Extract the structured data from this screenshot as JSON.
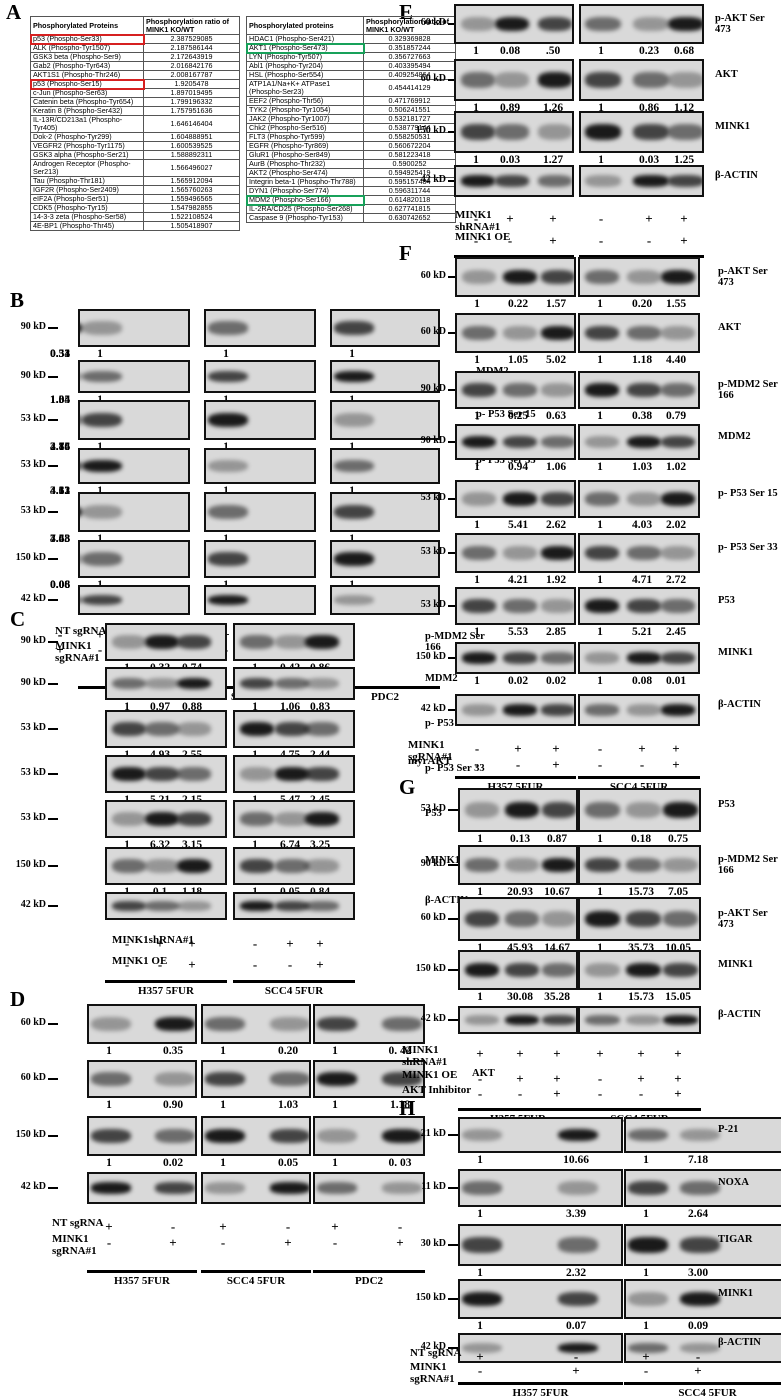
{
  "panels": [
    "A",
    "B",
    "C",
    "D",
    "E",
    "F",
    "G",
    "H"
  ],
  "table": {
    "left": {
      "headers": [
        "Phosphorylated Proteins",
        "Phosphorylation ratio of MINK1 KO/WT"
      ],
      "rows": [
        [
          "p53 (Phospho-Ser33)",
          "2.387529085",
          "red"
        ],
        [
          "ALK (Phospho-Tyr1507)",
          "2.187586144",
          ""
        ],
        [
          "GSK3 beta (Phospho-Ser9)",
          "2.172643919",
          ""
        ],
        [
          "Gab2 (Phospho-Tyr643)",
          "2.016842176",
          ""
        ],
        [
          "AKT1S1 (Phospho-Thr246)",
          "2.008167787",
          ""
        ],
        [
          "p53 (Phospho-Ser15)",
          "1.9205478",
          "red"
        ],
        [
          "c-Jun (Phospho-Ser63)",
          "1.897019495",
          ""
        ],
        [
          "Catenin beta (Phospho-Tyr654)",
          "1.799196332",
          ""
        ],
        [
          "Keratin 8 (Phospho-Ser432)",
          "1.757951636",
          ""
        ],
        [
          "IL-13R/CD213a1 (Phospho-Tyr405)",
          "1.646146404",
          ""
        ],
        [
          "Dok-2 (Phospho-Tyr299)",
          "1.604888951",
          ""
        ],
        [
          "VEGFR2 (Phospho-Tyr1175)",
          "1.600539525",
          ""
        ],
        [
          "GSK3 alpha (Phospho-Ser21)",
          "1.588892311",
          ""
        ],
        [
          "Androgen Receptor (Phospho-Ser213)",
          "1.566496027",
          ""
        ],
        [
          "Tau (Phospho-Thr181)",
          "1.565912094",
          ""
        ],
        [
          "IGF2R (Phospho-Ser2409)",
          "1.565760263",
          ""
        ],
        [
          "eIF2A (Phospho-Ser51)",
          "1.559496565",
          ""
        ],
        [
          "CDK5 (Phospho-Tyr15)",
          "1.547982855",
          ""
        ],
        [
          "14-3-3 zeta (Phospho-Ser58)",
          "1.522108524",
          ""
        ],
        [
          "4E-BP1 (Phospho-Thr45)",
          "1.505418907",
          ""
        ]
      ]
    },
    "right": {
      "headers": [
        "Phosphorylated proteins",
        "Phosphorylation ratio of MINK1 KO/WT"
      ],
      "rows": [
        [
          "HDAC1 (Phospho-Ser421)",
          "0.329369828",
          ""
        ],
        [
          "AKT1 (Phospho-Ser473)",
          "0.351857244",
          "green"
        ],
        [
          "LYN (Phospho-Tyr507)",
          "0.356727663",
          ""
        ],
        [
          "Abl1 (Phospho-Tyr204)",
          "0.403395494",
          ""
        ],
        [
          "HSL (Phospho-Ser554)",
          "0.409254864",
          ""
        ],
        [
          "ATP1A1/Na+K+ ATPase1 (Phospho-Ser23)",
          "0.454414129",
          ""
        ],
        [
          "EEF2 (Phospho-Thr56)",
          "0.471769912",
          ""
        ],
        [
          "TYK2 (Phospho-Tyr1054)",
          "0.506241551",
          ""
        ],
        [
          "JAK2 (Phospho-Tyr1007)",
          "0.532181727",
          ""
        ],
        [
          "Chk2 (Phospho-Ser516)",
          "0.538779144",
          ""
        ],
        [
          "FLT3 (Phospho-Tyr599)",
          "0.558250531",
          ""
        ],
        [
          "EGFR (Phospho-Tyr869)",
          "0.560672204",
          ""
        ],
        [
          "GluR1 (Phospho-Ser849)",
          "0.581223418",
          ""
        ],
        [
          "AurB (Phospho-Thr232)",
          "0.5900252",
          ""
        ],
        [
          "AKT2 (Phospho-Ser474)",
          "0.594925419",
          ""
        ],
        [
          "Integrin beta-1 (Phospho-Thr788)",
          "0.595157484",
          ""
        ],
        [
          "DYN1 (Phospho-Ser774)",
          "0.596311744",
          ""
        ],
        [
          "MDM2 (Phospho-Ser166)",
          "0.614820118",
          "green"
        ],
        [
          "IL-2RA/CD25 (Phospho-Ser268)",
          "0.627741815",
          ""
        ],
        [
          "Caspase 9 (Phospho-Tyr153)",
          "0.630742652",
          ""
        ]
      ]
    }
  },
  "blots": {
    "B": {
      "rows": [
        {
          "kd": "90 kD",
          "label": "p-MDM2 Ser 166",
          "q": [
            [
              "1",
              "0.31"
            ],
            [
              "1",
              "0.53"
            ],
            [
              "1",
              "0.34"
            ]
          ]
        },
        {
          "kd": "90 kD",
          "label": "MDM2",
          "q": [
            [
              "1",
              "1.05"
            ],
            [
              "1",
              "1.04"
            ],
            [
              "1",
              "1.34"
            ]
          ]
        },
        {
          "kd": "53 kD",
          "label": "p- P53 Ser 15",
          "q": [
            [
              "1",
              "2.84"
            ],
            [
              "1",
              "4.15"
            ],
            [
              "1",
              "3.76"
            ]
          ]
        },
        {
          "kd": "53 kD",
          "label": "p- P53 Ser 33",
          "q": [
            [
              "1",
              "3.12"
            ],
            [
              "1",
              "4.33"
            ],
            [
              "1",
              "4.61"
            ]
          ]
        },
        {
          "kd": "53 kD",
          "label": "P53",
          "q": [
            [
              "1",
              "3.48"
            ],
            [
              "1",
              "7.53"
            ],
            [
              "1",
              "4.63"
            ]
          ]
        },
        {
          "kd": "150 kD",
          "label": "MINK1",
          "q": [
            [
              "1",
              "0.08"
            ],
            [
              "1",
              "0.06"
            ],
            [
              "1",
              "0.08"
            ]
          ]
        },
        {
          "kd": "42 kD",
          "label": "β-ACTIN",
          "q": []
        }
      ],
      "treatments": [
        [
          "NT sgRNA",
          [
            "+",
            "-"
          ]
        ],
        [
          "MINK1 sgRNA#1",
          [
            "-",
            "+"
          ]
        ]
      ],
      "cells": [
        "H357 5FUR",
        "SCC4 5FUR",
        "PDC2"
      ]
    },
    "C": {
      "rows": [
        {
          "kd": "90 kD",
          "label": "p-MDM2 Ser 166",
          "q": [
            [
              "1",
              "0.32",
              "0.74"
            ],
            [
              "1",
              "0.42",
              "0.86"
            ]
          ]
        },
        {
          "kd": "90 kD",
          "label": "MDM2",
          "q": [
            [
              "1",
              "0.97",
              "0.88"
            ],
            [
              "1",
              "1.06",
              "0.83"
            ]
          ]
        },
        {
          "kd": "53 kD",
          "label": "p- P53 Ser 15",
          "q": [
            [
              "1",
              "4.93",
              "2.55"
            ],
            [
              "1",
              "4.75",
              "2.44"
            ]
          ]
        },
        {
          "kd": "53 kD",
          "label": "p- P53 Ser 33",
          "q": [
            [
              "1",
              "5.21",
              "2.15"
            ],
            [
              "1",
              "5.47",
              "2.45"
            ]
          ]
        },
        {
          "kd": "53 kD",
          "label": "P53",
          "q": [
            [
              "1",
              "6.32",
              "3.15"
            ],
            [
              "1",
              "6.74",
              "3.25"
            ]
          ]
        },
        {
          "kd": "150 kD",
          "label": "MINK1",
          "q": [
            [
              "1",
              "0.1",
              "1.18"
            ],
            [
              "1",
              "0.05",
              "0.84"
            ]
          ]
        },
        {
          "kd": "42 kD",
          "label": "β-ACTIN",
          "q": []
        }
      ],
      "treatments": [
        [
          "MINK1shRNA#1",
          [
            "-",
            "+",
            "+"
          ]
        ],
        [
          "MINK1 OE",
          [
            "-",
            "-",
            "+"
          ]
        ]
      ],
      "cells": [
        "H357 5FUR",
        "SCC4 5FUR"
      ]
    },
    "D": {
      "rows": [
        {
          "kd": "60 kD",
          "label": "p-AKT Ser 473",
          "q": [
            [
              "1",
              "0.35"
            ],
            [
              "1",
              "0.20"
            ],
            [
              "1",
              "0. 42"
            ]
          ]
        },
        {
          "kd": "60 kD",
          "label": "AKT",
          "q": [
            [
              "1",
              "0.90"
            ],
            [
              "1",
              "1.03"
            ],
            [
              "1",
              "1.18"
            ]
          ]
        },
        {
          "kd": "150 kD",
          "label": "MINK1",
          "q": [
            [
              "1",
              "0.02"
            ],
            [
              "1",
              "0.05"
            ],
            [
              "1",
              "0. 03"
            ]
          ]
        },
        {
          "kd": "42 kD",
          "label": "β-ACTIN",
          "q": []
        }
      ],
      "treatments": [
        [
          "NT sgRNA",
          [
            "+",
            "-"
          ]
        ],
        [
          "MINK1 sgRNA#1",
          [
            "-",
            "+"
          ]
        ]
      ],
      "cells": [
        "H357 5FUR",
        "SCC4 5FUR",
        "PDC2"
      ]
    },
    "E": {
      "rows": [
        {
          "kd": "60 kD",
          "label": "p-AKT Ser 473",
          "q": [
            [
              "1",
              "0.08",
              ".50"
            ],
            [
              "1",
              "0.23",
              "0.68"
            ]
          ]
        },
        {
          "kd": "60 kD",
          "label": "AKT",
          "q": [
            [
              "1",
              "0.89",
              "1.26"
            ],
            [
              "1",
              "0.86",
              "1.12"
            ]
          ]
        },
        {
          "kd": "150 kD",
          "label": "MINK1",
          "q": [
            [
              "1",
              "0.03",
              "1.27"
            ],
            [
              "1",
              "0.03",
              "1.25"
            ]
          ]
        },
        {
          "kd": "42 kD",
          "label": "β-ACTIN",
          "q": []
        }
      ],
      "treatments": [
        [
          "MINK1 shRNA#1",
          [
            "-",
            "+",
            "+"
          ]
        ],
        [
          "MINK1 OE",
          [
            "-",
            "-",
            "+"
          ]
        ]
      ],
      "cells": [
        "H357 5FUR",
        "SCC4 5FUR"
      ]
    },
    "F": {
      "rows": [
        {
          "kd": "60 kD",
          "label": "p-AKT Ser 473",
          "q": [
            [
              "1",
              "0.22",
              "1.57"
            ],
            [
              "1",
              "0.20",
              "1.55"
            ]
          ]
        },
        {
          "kd": "60 kD",
          "label": "AKT",
          "q": [
            [
              "1",
              "1.05",
              "5.02"
            ],
            [
              "1",
              "1.18",
              "4.40"
            ]
          ]
        },
        {
          "kd": "90 kD",
          "label": "p-MDM2 Ser 166",
          "q": [
            [
              "1",
              "0.25",
              "0.63"
            ],
            [
              "1",
              "0.38",
              "0.79"
            ]
          ]
        },
        {
          "kd": "90 kD",
          "label": "MDM2",
          "q": [
            [
              "1",
              "0.94",
              "1.06"
            ],
            [
              "1",
              "1.03",
              "1.02"
            ]
          ]
        },
        {
          "kd": "53 kD",
          "label": "p- P53 Ser 15",
          "q": [
            [
              "1",
              "5.41",
              "2.62"
            ],
            [
              "1",
              "4.03",
              "2.02"
            ]
          ]
        },
        {
          "kd": "53 kD",
          "label": "p- P53 Ser 33",
          "q": [
            [
              "1",
              "4.21",
              "1.92"
            ],
            [
              "1",
              "4.71",
              "2.72"
            ]
          ]
        },
        {
          "kd": "53 kD",
          "label": "P53",
          "q": [
            [
              "1",
              "5.53",
              "2.85"
            ],
            [
              "1",
              "5.21",
              "2.45"
            ]
          ]
        },
        {
          "kd": "150 kD",
          "label": "MINK1",
          "q": [
            [
              "1",
              "0.02",
              "0.02"
            ],
            [
              "1",
              "0.08",
              "0.01"
            ]
          ]
        },
        {
          "kd": "42 kD",
          "label": "β-ACTIN",
          "q": []
        }
      ],
      "treatments": [
        [
          "MINK1 sgRNA#1",
          [
            "-",
            "+",
            "+"
          ]
        ],
        [
          "myrAKT",
          [
            "-",
            "-",
            "+"
          ]
        ]
      ],
      "cells": [
        "H357 5FUR",
        "SCC4 5FUR"
      ]
    },
    "G": {
      "rows": [
        {
          "kd": "53 kD",
          "label": "P53",
          "q": [
            [
              "1",
              "0.13",
              "0.87"
            ],
            [
              "1",
              "0.18",
              "0.75"
            ]
          ]
        },
        {
          "kd": "90 kD",
          "label": "p-MDM2 Ser 166",
          "q": [
            [
              "1",
              "20.93",
              "10.67"
            ],
            [
              "1",
              "15.73",
              "7.05"
            ]
          ]
        },
        {
          "kd": "60 kD",
          "label": "p-AKT Ser 473",
          "q": [
            [
              "1",
              "45.93",
              "14.67"
            ],
            [
              "1",
              "35.73",
              "10.05"
            ]
          ]
        },
        {
          "kd": "150 kD",
          "label": "MINK1",
          "q": [
            [
              "1",
              "30.08",
              "35.28"
            ],
            [
              "1",
              "15.73",
              "15.05"
            ]
          ]
        },
        {
          "kd": "42 kD",
          "label": "β-ACTIN",
          "q": []
        }
      ],
      "treatments": [
        [
          "MINK1 shRNA#1",
          [
            "+",
            "+",
            "+"
          ]
        ],
        [
          "MINK1 OE",
          [
            "-",
            "+",
            "+"
          ]
        ],
        [
          "AKT Inhibitor",
          [
            "-",
            "-",
            "+"
          ]
        ]
      ],
      "cells": [
        "H357 5FUR",
        "SCC4 5FUR"
      ]
    },
    "H": {
      "rows": [
        {
          "kd": "21 kD",
          "label": "P-21",
          "q": [
            [
              "1",
              "10.66"
            ],
            [
              "1",
              "7.18"
            ]
          ]
        },
        {
          "kd": "11 kD",
          "label": "NOXA",
          "q": [
            [
              "1",
              "3.39"
            ],
            [
              "1",
              "2.64"
            ]
          ]
        },
        {
          "kd": "30 kD",
          "label": "TIGAR",
          "q": [
            [
              "1",
              "2.32"
            ],
            [
              "1",
              "3.00"
            ]
          ]
        },
        {
          "kd": "150 kD",
          "label": "MINK1",
          "q": [
            [
              "1",
              "0.07"
            ],
            [
              "1",
              "0.09"
            ]
          ]
        },
        {
          "kd": "42 kD",
          "label": "β-ACTIN",
          "q": []
        }
      ],
      "treatments": [
        [
          "NT sgRNA",
          [
            "+",
            "-"
          ]
        ],
        [
          "MINK1 sgRNA#1",
          [
            "-",
            "+"
          ]
        ]
      ],
      "cells": [
        "H357 5FUR",
        "SCC4 5FUR"
      ]
    }
  }
}
